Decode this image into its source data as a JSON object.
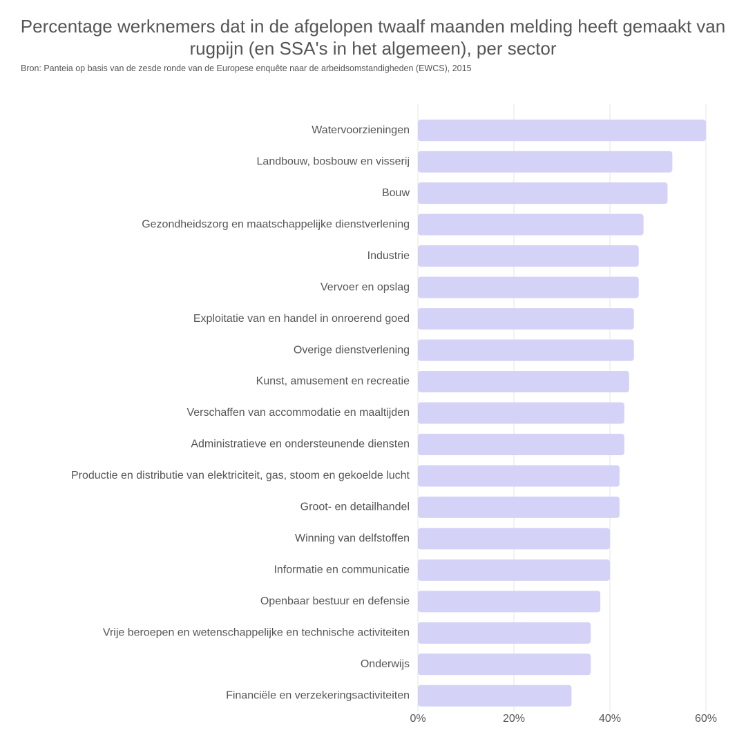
{
  "chart_data": {
    "type": "bar",
    "orientation": "horizontal",
    "title": "Percentage werknemers dat in de afgelopen twaalf maanden melding heeft gemaakt van rugpijn (en SSA's in het algemeen), per sector",
    "subtitle": "Bron: Panteia op basis van de zesde ronde van de Europese enquête naar de arbeidsomstandigheden (EWCS), 2015",
    "categories": [
      "Watervoorzieningen",
      "Landbouw, bosbouw en visserij",
      "Bouw",
      "Gezondheidszorg en maatschappelijke dienstverlening",
      "Industrie",
      "Vervoer en opslag",
      "Exploitatie van en handel in onroerend goed",
      "Overige dienstverlening",
      "Kunst, amusement en recreatie",
      "Verschaffen van accommodatie en maaltijden",
      "Administratieve en ondersteunende diensten",
      "Productie en distributie van elektriciteit, gas, stoom en gekoelde lucht",
      "Groot- en detailhandel",
      "Winning van delfstoffen",
      "Informatie en communicatie",
      "Openbaar bestuur en defensie",
      "Vrije beroepen en wetenschappelijke en technische activiteiten",
      "Onderwijs",
      "Financiële en verzekeringsactiviteiten"
    ],
    "values": [
      60,
      53,
      52,
      47,
      46,
      46,
      45,
      45,
      44,
      43,
      43,
      42,
      42,
      40,
      40,
      38,
      36,
      36,
      32
    ],
    "color": "#d4d2f7",
    "xlim": [
      0,
      60
    ],
    "xticks": [
      {
        "value": 0,
        "label": "0%"
      },
      {
        "value": 20,
        "label": "20%"
      },
      {
        "value": 40,
        "label": "40%"
      },
      {
        "value": 60,
        "label": "60%"
      }
    ],
    "grid": true
  }
}
